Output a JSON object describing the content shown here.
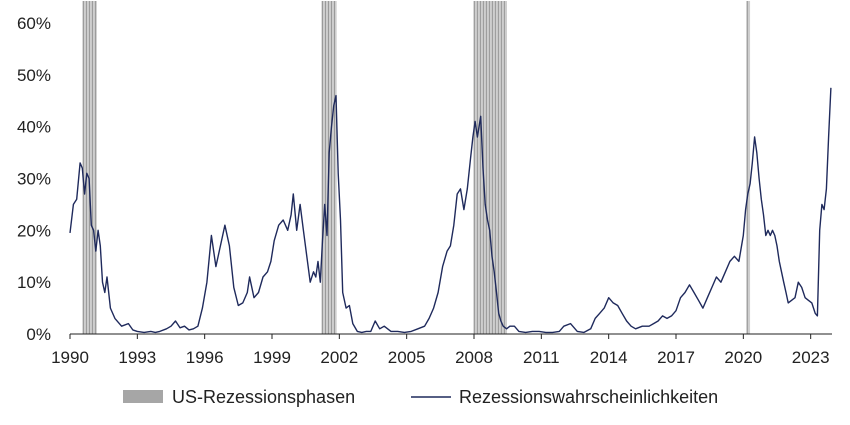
{
  "chart_data": {
    "type": "line",
    "title": "",
    "xlabel": "",
    "ylabel": "",
    "xlim": [
      1990.0,
      2023.95
    ],
    "ylim": [
      0,
      60
    ],
    "grid": false,
    "legend_position": "bottom",
    "x_ticks": [
      1990,
      1993,
      1996,
      1999,
      2002,
      2005,
      2008,
      2011,
      2014,
      2017,
      2020,
      2023
    ],
    "x_tick_labels": [
      "1990",
      "1993",
      "1996",
      "1999",
      "2002",
      "2005",
      "2008",
      "2011",
      "2014",
      "2017",
      "2020",
      "2023"
    ],
    "y_ticks": [
      0,
      10,
      20,
      30,
      40,
      50,
      60
    ],
    "y_tick_labels": [
      "0%",
      "10%",
      "20%",
      "30%",
      "40%",
      "50%",
      "60%"
    ],
    "recessions": [
      {
        "start": 1990.55,
        "end": 1991.2
      },
      {
        "start": 2001.2,
        "end": 2001.88
      },
      {
        "start": 2007.97,
        "end": 2009.47
      },
      {
        "start": 2020.13,
        "end": 2020.3
      }
    ],
    "series": [
      {
        "name": "Rezessionswahrscheinlichkeiten",
        "color": "#1f2a5c",
        "x": [
          1990.0,
          1990.15,
          1990.3,
          1990.45,
          1990.55,
          1990.65,
          1990.75,
          1990.85,
          1990.95,
          1991.05,
          1991.15,
          1991.25,
          1991.35,
          1991.45,
          1991.55,
          1991.65,
          1991.8,
          1992.0,
          1992.3,
          1992.6,
          1992.8,
          1993.0,
          1993.3,
          1993.6,
          1993.8,
          1994.0,
          1994.3,
          1994.5,
          1994.7,
          1994.9,
          1995.1,
          1995.3,
          1995.5,
          1995.7,
          1995.9,
          1996.1,
          1996.3,
          1996.5,
          1996.7,
          1996.9,
          1997.1,
          1997.3,
          1997.5,
          1997.7,
          1997.9,
          1998.0,
          1998.2,
          1998.4,
          1998.6,
          1998.8,
          1998.95,
          1999.1,
          1999.3,
          1999.5,
          1999.7,
          1999.85,
          1999.95,
          2000.1,
          2000.25,
          2000.4,
          2000.55,
          2000.7,
          2000.85,
          2000.95,
          2001.05,
          2001.15,
          2001.25,
          2001.35,
          2001.45,
          2001.55,
          2001.65,
          2001.75,
          2001.85,
          2001.95,
          2002.05,
          2002.15,
          2002.3,
          2002.45,
          2002.6,
          2002.8,
          2003.0,
          2003.2,
          2003.4,
          2003.6,
          2003.8,
          2004.0,
          2004.3,
          2004.6,
          2004.9,
          2005.2,
          2005.5,
          2005.8,
          2006.0,
          2006.2,
          2006.4,
          2006.6,
          2006.8,
          2006.95,
          2007.1,
          2007.25,
          2007.4,
          2007.55,
          2007.7,
          2007.85,
          2007.95,
          2008.05,
          2008.15,
          2008.3,
          2008.4,
          2008.5,
          2008.6,
          2008.7,
          2008.8,
          2008.9,
          2009.0,
          2009.1,
          2009.2,
          2009.3,
          2009.45,
          2009.6,
          2009.8,
          2010.0,
          2010.3,
          2010.6,
          2010.9,
          2011.2,
          2011.5,
          2011.8,
          2012.0,
          2012.3,
          2012.6,
          2012.9,
          2013.2,
          2013.4,
          2013.6,
          2013.8,
          2014.0,
          2014.2,
          2014.4,
          2014.6,
          2014.8,
          2015.0,
          2015.2,
          2015.5,
          2015.8,
          2016.0,
          2016.2,
          2016.4,
          2016.6,
          2016.8,
          2017.0,
          2017.2,
          2017.4,
          2017.6,
          2017.8,
          2018.0,
          2018.2,
          2018.4,
          2018.6,
          2018.8,
          2019.0,
          2019.2,
          2019.4,
          2019.6,
          2019.8,
          2020.0,
          2020.1,
          2020.2,
          2020.3,
          2020.4,
          2020.5,
          2020.6,
          2020.7,
          2020.8,
          2020.9,
          2021.0,
          2021.1,
          2021.2,
          2021.3,
          2021.4,
          2021.5,
          2021.6,
          2021.7,
          2021.8,
          2021.9,
          2022.0,
          2022.15,
          2022.3,
          2022.45,
          2022.6,
          2022.75,
          2022.9,
          2023.05,
          2023.2,
          2023.3,
          2023.4,
          2023.5,
          2023.6,
          2023.7,
          2023.8,
          2023.9
        ],
        "values": [
          19.5,
          25,
          26,
          33,
          32,
          27,
          31,
          30,
          21,
          20,
          16,
          20,
          17,
          10,
          8,
          11,
          5,
          3,
          1.5,
          2,
          0.8,
          0.5,
          0.3,
          0.5,
          0.3,
          0.5,
          1,
          1.5,
          2.5,
          1.2,
          1.5,
          0.8,
          1,
          1.5,
          5,
          10,
          19,
          13,
          17,
          21,
          17,
          9,
          5.5,
          6,
          8,
          11,
          7,
          8,
          11,
          12,
          14,
          18,
          21,
          22,
          20,
          23,
          27,
          20,
          25,
          20,
          15,
          10,
          12,
          11,
          14,
          10,
          18,
          25,
          19,
          35,
          40,
          44,
          46,
          31,
          22,
          8,
          5,
          5.5,
          2,
          0.5,
          0.3,
          0.5,
          0.5,
          2.5,
          1,
          1.5,
          0.5,
          0.5,
          0.3,
          0.5,
          1,
          1.5,
          3,
          5,
          8,
          13,
          16,
          17,
          21,
          27,
          28,
          24,
          28,
          34,
          38,
          41,
          38,
          42,
          32,
          25,
          22,
          20,
          15,
          12,
          8,
          4,
          2.5,
          1.5,
          1,
          1.5,
          1.5,
          0.5,
          0.3,
          0.5,
          0.5,
          0.3,
          0.3,
          0.5,
          1.5,
          2,
          0.5,
          0.3,
          1,
          3,
          4,
          5,
          7,
          6,
          5.5,
          4,
          2.5,
          1.5,
          1,
          1.5,
          1.5,
          2,
          2.5,
          3.5,
          3,
          3.5,
          4.5,
          7,
          8,
          9.5,
          8,
          6.5,
          5,
          7,
          9,
          11,
          10,
          12,
          14,
          15,
          14,
          19,
          24,
          27,
          29,
          33,
          38,
          35,
          30,
          26,
          23,
          19,
          20,
          19,
          20,
          19,
          17,
          14,
          12,
          10,
          8,
          6,
          6.5,
          7,
          10,
          9,
          7,
          6.5,
          6,
          4,
          3.5,
          20,
          25,
          24,
          28,
          38,
          47.5
        ]
      }
    ],
    "legend": {
      "recession_label": "US-Rezessionsphasen",
      "series_label": "Rezessionswahrscheinlichkeiten"
    },
    "colors": {
      "recession_fill": "#a6a6a6",
      "line": "#1f2a5c",
      "axis": "#222222"
    }
  }
}
